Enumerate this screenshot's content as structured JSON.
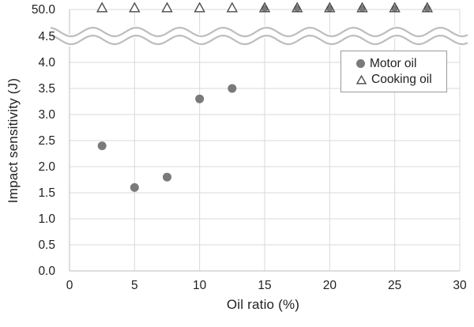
{
  "chart_data": {
    "type": "scatter",
    "title": "",
    "xlabel": "Oil ratio (%)",
    "ylabel": "Impact sensitivity (J)",
    "xlim": [
      0,
      30
    ],
    "ylim_linear": [
      0,
      4.5
    ],
    "axis_break": true,
    "y_break_label": "50.0",
    "y_break_value": 50,
    "grid": true,
    "legend_position": "top-right",
    "x_tick_values": [
      0,
      5,
      10,
      15,
      20,
      25,
      30
    ],
    "x_tick_labels": [
      "0",
      "5",
      "10",
      "15",
      "20",
      "25",
      "30"
    ],
    "y_tick_values": [
      0,
      0.5,
      1.0,
      1.5,
      2.0,
      2.5,
      3.0,
      3.5,
      4.0,
      4.5
    ],
    "y_tick_labels": [
      "0.0",
      "0.5",
      "1.0",
      "1.5",
      "2.0",
      "2.5",
      "3.0",
      "3.5",
      "4.0",
      "4.5"
    ],
    "series": [
      {
        "name": "Motor oil",
        "marker": "circle",
        "color": "#7a7a7a",
        "points": [
          [
            2.5,
            2.4
          ],
          [
            5,
            1.6
          ],
          [
            7.5,
            1.8
          ],
          [
            10,
            3.3
          ],
          [
            12.5,
            3.5
          ],
          [
            15,
            50
          ],
          [
            17.5,
            50
          ],
          [
            20,
            50
          ],
          [
            22.5,
            50
          ],
          [
            25,
            50
          ],
          [
            27.5,
            50
          ]
        ]
      },
      {
        "name": "Cooking oil",
        "marker": "triangle-open",
        "color": "#4a4a4a",
        "points": [
          [
            2.5,
            50
          ],
          [
            5,
            50
          ],
          [
            7.5,
            50
          ],
          [
            10,
            50
          ],
          [
            12.5,
            50
          ],
          [
            15,
            50
          ],
          [
            17.5,
            50
          ],
          [
            20,
            50
          ],
          [
            22.5,
            50
          ],
          [
            25,
            50
          ],
          [
            27.5,
            50
          ]
        ]
      }
    ]
  },
  "colors": {
    "gridline": "#d9d9d9",
    "axis_line": "#c9c9c9",
    "wave_break": "#bdbdbd",
    "tick_text": "#1f1f1f",
    "motor_fill": "#7a7a7a",
    "triangle_stroke": "#4a4a4a",
    "legend_border": "#9a9a9a"
  }
}
